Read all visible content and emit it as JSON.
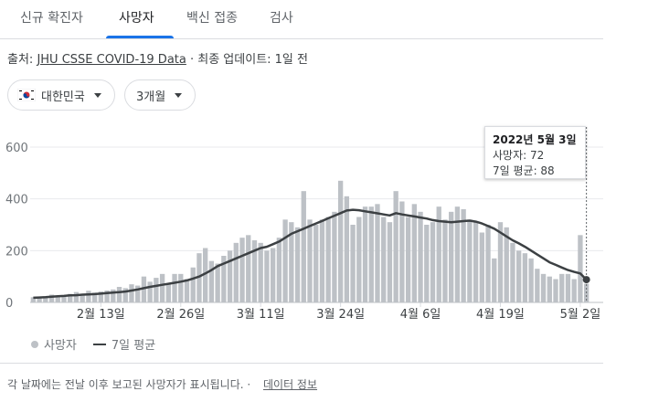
{
  "tabs": [
    {
      "label": "신규 확진자"
    },
    {
      "label": "사망자"
    },
    {
      "label": "백신 접종"
    },
    {
      "label": "검사"
    }
  ],
  "source": {
    "prefix": "출처: ",
    "link": "JHU CSSE COVID-19 Data",
    "suffix": " · 최종 업데이트: 1일 전"
  },
  "filters": {
    "country": "대한민국",
    "range": "3개월"
  },
  "tooltip": {
    "date": "2022년 5월 3일",
    "deaths": "사망자: 72",
    "avg": "7일 평균: 88"
  },
  "legend": {
    "bars": "사망자",
    "line": "7일 평균"
  },
  "footer": {
    "note": "각 날짜에는 전날 이후 보고된 사망자가 표시됩니다. ·",
    "link": "데이터 정보"
  },
  "colors": {
    "bar": "#bdc1c6",
    "line": "#3c4043",
    "accent": "#1a73e8",
    "grid": "#e8eaed"
  },
  "chart_data": {
    "type": "bar",
    "ylim": [
      0,
      600
    ],
    "yticks": [
      0,
      200,
      400,
      600
    ],
    "xtick_labels": [
      "2월 13일",
      "2월 26일",
      "3월 11일",
      "3월 24일",
      "4월 6일",
      "4월 19일",
      "5월 2일"
    ],
    "xtick_indices": [
      11,
      24,
      37,
      50,
      63,
      76,
      89
    ],
    "series": [
      {
        "name": "사망자",
        "values": [
          20,
          18,
          22,
          30,
          25,
          28,
          33,
          40,
          30,
          45,
          38,
          42,
          46,
          50,
          60,
          55,
          70,
          65,
          100,
          80,
          95,
          110,
          70,
          110,
          110,
          90,
          135,
          190,
          210,
          160,
          150,
          180,
          200,
          230,
          250,
          260,
          240,
          230,
          200,
          210,
          250,
          320,
          310,
          290,
          430,
          320,
          300,
          320,
          330,
          350,
          470,
          410,
          300,
          330,
          370,
          370,
          380,
          330,
          310,
          430,
          390,
          330,
          380,
          350,
          300,
          310,
          370,
          320,
          350,
          370,
          360,
          320,
          310,
          270,
          300,
          170,
          310,
          290,
          230,
          200,
          190,
          170,
          130,
          110,
          100,
          90,
          110,
          110,
          90,
          260,
          72
        ],
        "dates_note": "daily deaths, last value 2022-05-03"
      },
      {
        "name": "7일 평균",
        "values": [
          18,
          19,
          20,
          22,
          24,
          25,
          27,
          28,
          30,
          31,
          32,
          34,
          36,
          38,
          40,
          42,
          46,
          50,
          55,
          60,
          64,
          68,
          72,
          76,
          80,
          85,
          92,
          100,
          112,
          125,
          140,
          150,
          160,
          170,
          180,
          190,
          200,
          210,
          215,
          225,
          235,
          250,
          265,
          275,
          285,
          295,
          305,
          315,
          325,
          335,
          345,
          355,
          358,
          356,
          352,
          348,
          344,
          340,
          336,
          345,
          340,
          336,
          332,
          328,
          324,
          318,
          314,
          312,
          310,
          312,
          314,
          316,
          312,
          305,
          295,
          285,
          270,
          255,
          240,
          228,
          215,
          200,
          185,
          170,
          155,
          145,
          135,
          125,
          118,
          112,
          88
        ]
      }
    ]
  }
}
